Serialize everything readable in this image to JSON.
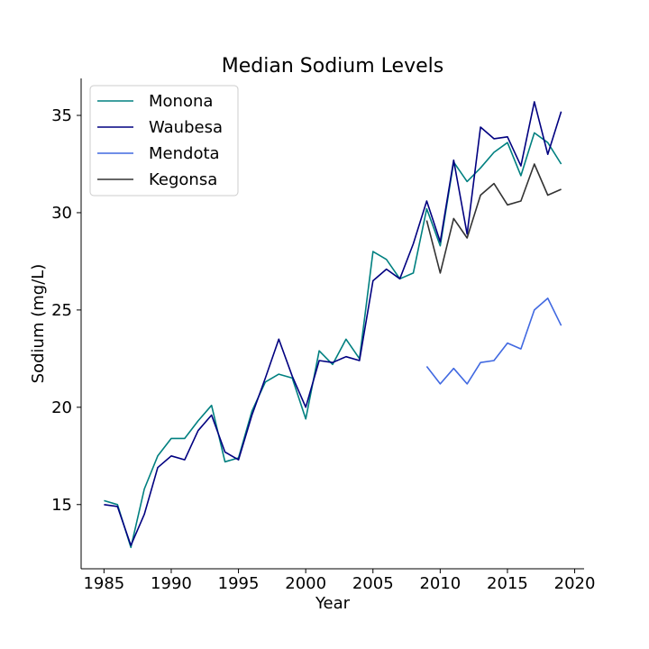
{
  "chart_data": {
    "type": "line",
    "title": "Median Sodium Levels",
    "xlabel": "Year",
    "ylabel": "Sodium (mg/L)",
    "xlim": [
      1983.3,
      2020.7
    ],
    "ylim": [
      11.7,
      36.9
    ],
    "xticks": [
      1985,
      1990,
      1995,
      2000,
      2005,
      2010,
      2015,
      2020
    ],
    "yticks": [
      15,
      20,
      25,
      30,
      35
    ],
    "grid": false,
    "legend_position": "top-left",
    "series": [
      {
        "name": "Monona",
        "color": "#008080",
        "x": [
          1985,
          1986,
          1987,
          1988,
          1989,
          1990,
          1991,
          1992,
          1993,
          1994,
          1995,
          1996,
          1997,
          1998,
          1999,
          2000,
          2001,
          2002,
          2003,
          2004,
          2005,
          2006,
          2007,
          2008,
          2009,
          2010,
          2011,
          2012,
          2013,
          2014,
          2015,
          2016,
          2017,
          2018,
          2019
        ],
        "y": [
          15.2,
          15.0,
          12.8,
          15.8,
          17.5,
          18.4,
          18.4,
          19.3,
          20.1,
          17.2,
          17.4,
          19.8,
          21.3,
          21.7,
          21.5,
          19.4,
          22.9,
          22.2,
          23.5,
          22.5,
          28.0,
          27.6,
          26.6,
          26.9,
          30.2,
          28.3,
          32.6,
          31.6,
          32.3,
          33.1,
          33.6,
          31.9,
          34.1,
          33.6,
          32.5
        ]
      },
      {
        "name": "Waubesa",
        "color": "#000080",
        "x": [
          1985,
          1986,
          1987,
          1988,
          1989,
          1990,
          1991,
          1992,
          1993,
          1994,
          1995,
          1996,
          1997,
          1998,
          1999,
          2000,
          2001,
          2002,
          2003,
          2004,
          2005,
          2006,
          2007,
          2008,
          2009,
          2010,
          2011,
          2012,
          2013,
          2014,
          2015,
          2016,
          2017,
          2018,
          2019
        ],
        "y": [
          15.0,
          14.9,
          12.9,
          14.5,
          16.9,
          17.5,
          17.3,
          18.8,
          19.6,
          17.7,
          17.3,
          19.6,
          21.5,
          23.5,
          21.6,
          20.0,
          22.4,
          22.3,
          22.6,
          22.4,
          26.5,
          27.1,
          26.6,
          28.4,
          30.6,
          28.5,
          32.7,
          28.9,
          34.4,
          33.8,
          33.9,
          32.4,
          35.7,
          33.0,
          35.2
        ]
      },
      {
        "name": "Mendota",
        "color": "#4169e1",
        "x": [
          2009,
          2010,
          2011,
          2012,
          2013,
          2014,
          2015,
          2016,
          2017,
          2018,
          2019
        ],
        "y": [
          22.1,
          21.2,
          22.0,
          21.2,
          22.3,
          22.4,
          23.3,
          23.0,
          25.0,
          25.6,
          24.2
        ]
      },
      {
        "name": "Kegonsa",
        "color": "#333333",
        "x": [
          2009,
          2010,
          2011,
          2012,
          2013,
          2014,
          2015,
          2016,
          2017,
          2018,
          2019
        ],
        "y": [
          29.6,
          26.9,
          29.7,
          28.7,
          30.9,
          31.5,
          30.4,
          30.6,
          32.5,
          30.9,
          31.2
        ]
      }
    ]
  }
}
